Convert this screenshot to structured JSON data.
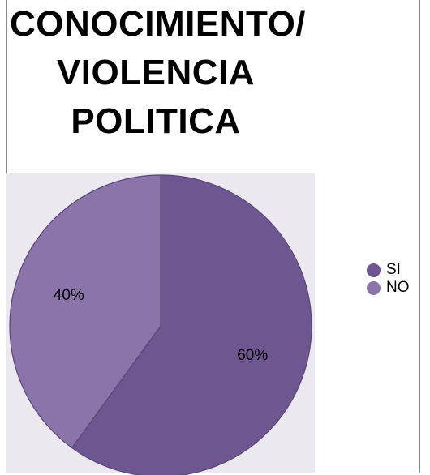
{
  "title_lines": [
    "CONOCIMIENTO/",
    "VIOLENCIA",
    "POLITICA"
  ],
  "chart_data": {
    "type": "pie",
    "title": "CONOCIMIENTO/ VIOLENCIA POLITICA",
    "categories": [
      "SI",
      "NO"
    ],
    "values": [
      60,
      40
    ],
    "data_labels": [
      "60%",
      "40%"
    ],
    "colors": [
      "#6e5690",
      "#8a74aa"
    ],
    "legend_position": "right"
  }
}
